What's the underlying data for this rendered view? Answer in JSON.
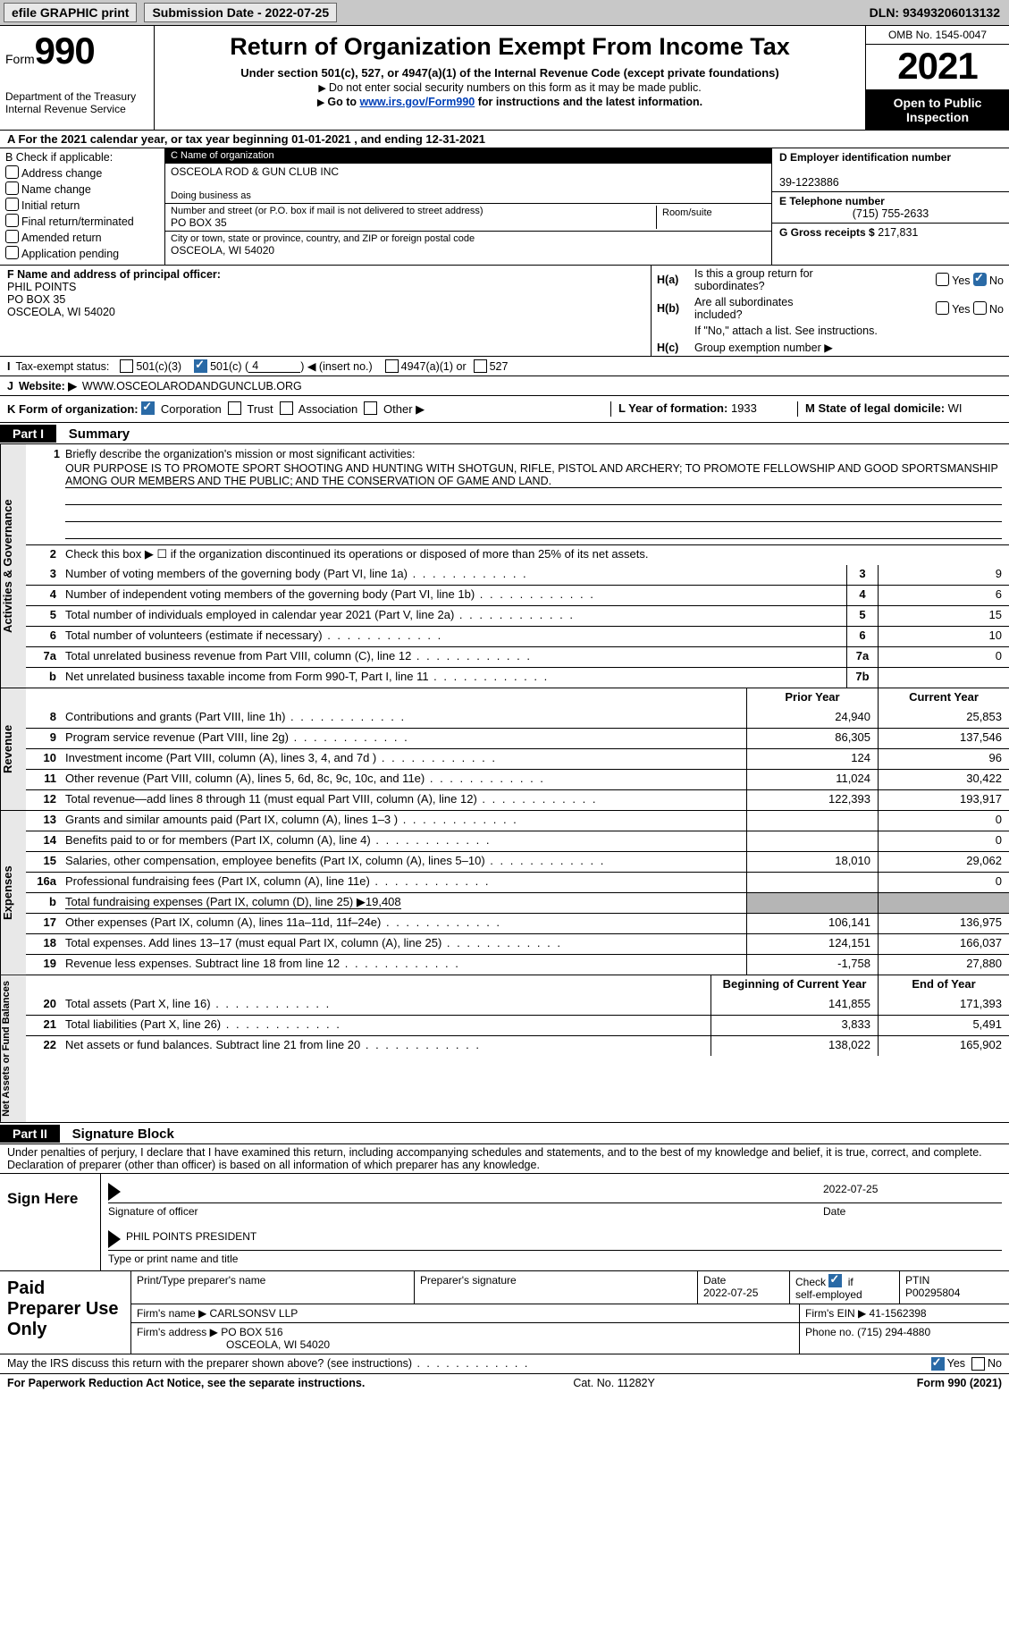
{
  "topbar": {
    "efile": "efile GRAPHIC print",
    "submission": "Submission Date - 2022-07-25",
    "dln_label": "DLN:",
    "dln": "93493206013132"
  },
  "header": {
    "form_prefix": "Form",
    "form_no": "990",
    "dept": "Department of the Treasury",
    "irs": "Internal Revenue Service",
    "title": "Return of Organization Exempt From Income Tax",
    "sub1": "Under section 501(c), 527, or 4947(a)(1) of the Internal Revenue Code (except private foundations)",
    "sub2": "Do not enter social security numbers on this form as it may be made public.",
    "sub3_pre": "Go to ",
    "sub3_link": "www.irs.gov/Form990",
    "sub3_post": " for instructions and the latest information.",
    "omb": "OMB No. 1545-0047",
    "year": "2021",
    "inspect1": "Open to Public",
    "inspect2": "Inspection"
  },
  "rowA": {
    "text_pre": "A For the 2021 calendar year, or tax year beginning ",
    "begin": "01-01-2021",
    "mid": "   , and ending ",
    "end": "12-31-2021"
  },
  "colB": {
    "label": "B Check if applicable:",
    "items": [
      "Address change",
      "Name change",
      "Initial return",
      "Final return/terminated",
      "Amended return",
      "Application pending"
    ]
  },
  "colC": {
    "name_lbl": "C Name of organization",
    "name": "OSCEOLA ROD & GUN CLUB INC",
    "dba_lbl": "Doing business as",
    "dba": "",
    "addr_lbl": "Number and street (or P.O. box if mail is not delivered to street address)",
    "room_lbl": "Room/suite",
    "addr": "PO BOX 35",
    "city_lbl": "City or town, state or province, country, and ZIP or foreign postal code",
    "city": "OSCEOLA, WI  54020"
  },
  "colD": {
    "ein_lbl": "D Employer identification number",
    "ein": "39-1223886",
    "tel_lbl": "E Telephone number",
    "tel": "(715) 755-2633",
    "gross_lbl": "G Gross receipts $",
    "gross": "217,831"
  },
  "rowF": {
    "lbl": "F  Name and address of principal officer:",
    "name": "PHIL POINTS",
    "addr1": "PO BOX 35",
    "addr2": "OSCEOLA, WI  54020"
  },
  "rowH": {
    "a_lbl": "H(a)",
    "a_txt1": "Is this a group return for",
    "a_txt2": "subordinates?",
    "b_lbl": "H(b)",
    "b_txt1": "Are all subordinates",
    "b_txt2": "included?",
    "b_note": "If \"No,\" attach a list. See instructions.",
    "c_lbl": "H(c)",
    "c_txt": "Group exemption number ▶",
    "yes": "Yes",
    "no": "No"
  },
  "rowI": {
    "lbl": "I",
    "txt": "Tax-exempt status:",
    "opt1": "501(c)(3)",
    "opt2_pre": "501(c) (",
    "opt2_num": "4",
    "opt2_post": ") ◀ (insert no.)",
    "opt3": "4947(a)(1) or",
    "opt4": "527"
  },
  "rowJ": {
    "lbl": "J",
    "txt": "Website: ▶",
    "val": "WWW.OSCEOLARODANDGUNCLUB.ORG"
  },
  "rowK": {
    "lbl": "K Form of organization:",
    "opts": [
      "Corporation",
      "Trust",
      "Association",
      "Other ▶"
    ],
    "l_lbl": "L Year of formation:",
    "l_val": "1933",
    "m_lbl": "M State of legal domicile:",
    "m_val": "WI"
  },
  "part1": {
    "hdr": "Part I",
    "title": "Summary",
    "q1_lbl": "1",
    "q1_txt": "Briefly describe the organization's mission or most significant activities:",
    "q1_val": "OUR PURPOSE IS TO PROMOTE SPORT SHOOTING AND HUNTING WITH SHOTGUN, RIFLE, PISTOL AND ARCHERY; TO PROMOTE FELLOWSHIP AND GOOD SPORTSMANSHIP AMONG OUR MEMBERS AND THE PUBLIC; AND THE CONSERVATION OF GAME AND LAND.",
    "q2_lbl": "2",
    "q2_txt": "Check this box ▶ ☐ if the organization discontinued its operations or disposed of more than 25% of its net assets.",
    "side1": "Activities & Governance",
    "side2": "Revenue",
    "side3": "Expenses",
    "side4": "Net Assets or Fund Balances",
    "prior_hdr": "Prior Year",
    "curr_hdr": "Current Year",
    "boy_hdr": "Beginning of Current Year",
    "eoy_hdr": "End of Year",
    "lines_gov": [
      {
        "n": "3",
        "d": "Number of voting members of the governing body (Part VI, line 1a)",
        "box": "3",
        "v": "9"
      },
      {
        "n": "4",
        "d": "Number of independent voting members of the governing body (Part VI, line 1b)",
        "box": "4",
        "v": "6"
      },
      {
        "n": "5",
        "d": "Total number of individuals employed in calendar year 2021 (Part V, line 2a)",
        "box": "5",
        "v": "15"
      },
      {
        "n": "6",
        "d": "Total number of volunteers (estimate if necessary)",
        "box": "6",
        "v": "10"
      },
      {
        "n": "7a",
        "d": "Total unrelated business revenue from Part VIII, column (C), line 12",
        "box": "7a",
        "v": "0"
      },
      {
        "n": "b",
        "d": "Net unrelated business taxable income from Form 990-T, Part I, line 11",
        "box": "7b",
        "v": ""
      }
    ],
    "lines_rev": [
      {
        "n": "8",
        "d": "Contributions and grants (Part VIII, line 1h)",
        "p": "24,940",
        "c": "25,853"
      },
      {
        "n": "9",
        "d": "Program service revenue (Part VIII, line 2g)",
        "p": "86,305",
        "c": "137,546"
      },
      {
        "n": "10",
        "d": "Investment income (Part VIII, column (A), lines 3, 4, and 7d )",
        "p": "124",
        "c": "96"
      },
      {
        "n": "11",
        "d": "Other revenue (Part VIII, column (A), lines 5, 6d, 8c, 9c, 10c, and 11e)",
        "p": "11,024",
        "c": "30,422"
      },
      {
        "n": "12",
        "d": "Total revenue—add lines 8 through 11 (must equal Part VIII, column (A), line 12)",
        "p": "122,393",
        "c": "193,917"
      }
    ],
    "lines_exp": [
      {
        "n": "13",
        "d": "Grants and similar amounts paid (Part IX, column (A), lines 1–3 )",
        "p": "",
        "c": "0"
      },
      {
        "n": "14",
        "d": "Benefits paid to or for members (Part IX, column (A), line 4)",
        "p": "",
        "c": "0"
      },
      {
        "n": "15",
        "d": "Salaries, other compensation, employee benefits (Part IX, column (A), lines 5–10)",
        "p": "18,010",
        "c": "29,062"
      },
      {
        "n": "16a",
        "d": "Professional fundraising fees (Part IX, column (A), line 11e)",
        "p": "",
        "c": "0"
      },
      {
        "n": "b",
        "d": "Total fundraising expenses (Part IX, column (D), line 25) ▶19,408",
        "grey": true
      },
      {
        "n": "17",
        "d": "Other expenses (Part IX, column (A), lines 11a–11d, 11f–24e)",
        "p": "106,141",
        "c": "136,975"
      },
      {
        "n": "18",
        "d": "Total expenses. Add lines 13–17 (must equal Part IX, column (A), line 25)",
        "p": "124,151",
        "c": "166,037"
      },
      {
        "n": "19",
        "d": "Revenue less expenses. Subtract line 18 from line 12",
        "p": "-1,758",
        "c": "27,880"
      }
    ],
    "lines_net": [
      {
        "n": "20",
        "d": "Total assets (Part X, line 16)",
        "p": "141,855",
        "c": "171,393"
      },
      {
        "n": "21",
        "d": "Total liabilities (Part X, line 26)",
        "p": "3,833",
        "c": "5,491"
      },
      {
        "n": "22",
        "d": "Net assets or fund balances. Subtract line 21 from line 20",
        "p": "138,022",
        "c": "165,902"
      }
    ]
  },
  "part2": {
    "hdr": "Part II",
    "title": "Signature Block",
    "decl": "Under penalties of perjury, I declare that I have examined this return, including accompanying schedules and statements, and to the best of my knowledge and belief, it is true, correct, and complete. Declaration of preparer (other than officer) is based on all information of which preparer has any knowledge.",
    "sign_here": "Sign Here",
    "sig_officer": "Signature of officer",
    "sig_date_lbl": "Date",
    "sig_date": "2022-07-25",
    "printed": "PHIL POINTS  PRESIDENT",
    "printed_lbl": "Type or print name and title",
    "paid": "Paid Preparer Use Only",
    "pp_name_lbl": "Print/Type preparer's name",
    "pp_sig_lbl": "Preparer's signature",
    "pp_date_lbl": "Date",
    "pp_date": "2022-07-25",
    "pp_check_lbl": "Check ☑ if self-employed",
    "pp_ptin_lbl": "PTIN",
    "pp_ptin": "P00295804",
    "firm_name_lbl": "Firm's name    ▶",
    "firm_name": "CARLSONSV LLP",
    "firm_ein_lbl": "Firm's EIN ▶",
    "firm_ein": "41-1562398",
    "firm_addr_lbl": "Firm's address ▶",
    "firm_addr1": "PO BOX 516",
    "firm_addr2": "OSCEOLA, WI  54020",
    "firm_phone_lbl": "Phone no.",
    "firm_phone": "(715) 294-4880",
    "discuss": "May the IRS discuss this return with the preparer shown above? (see instructions)",
    "yes": "Yes",
    "no": "No"
  },
  "footer": {
    "left": "For Paperwork Reduction Act Notice, see the separate instructions.",
    "mid": "Cat. No. 11282Y",
    "right": "Form 990 (2021)"
  }
}
